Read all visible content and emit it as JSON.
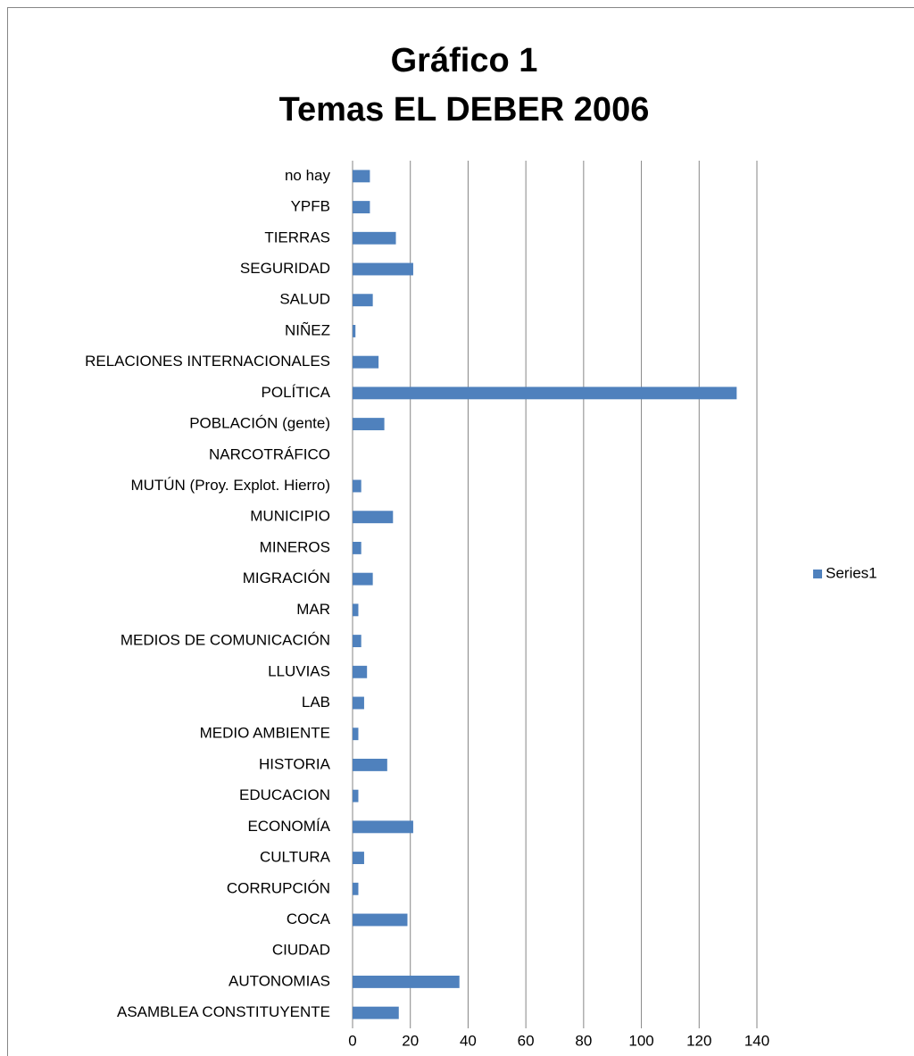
{
  "chart_data": {
    "type": "barh",
    "title": [
      "Gráfico 1",
      "Temas EL DEBER 2006"
    ],
    "categories": [
      "ASAMBLEA CONSTITUYENTE",
      "AUTONOMIAS",
      "CIUDAD",
      "COCA",
      "CORRUPCIÓN",
      "CULTURA",
      "ECONOMÍA",
      "EDUCACION",
      "HISTORIA",
      "MEDIO AMBIENTE",
      "LAB",
      "LLUVIAS",
      "MEDIOS DE COMUNICACIÓN",
      "MAR",
      "MIGRACIÓN",
      "MINEROS",
      "MUNICIPIO",
      "MUTÚN (Proy. Explot. Hierro)",
      "NARCOTRÁFICO",
      "POBLACIÓN (gente)",
      "POLÍTICA",
      "RELACIONES INTERNACIONALES",
      "NIÑEZ",
      "SALUD",
      "SEGURIDAD",
      "TIERRAS",
      "YPFB",
      "no hay"
    ],
    "series": [
      {
        "name": "Series1",
        "color": "#4f81bd",
        "values": [
          16,
          37,
          0,
          19,
          2,
          4,
          21,
          2,
          12,
          2,
          4,
          5,
          3,
          2,
          7,
          3,
          14,
          3,
          0,
          11,
          133,
          9,
          1,
          7,
          21,
          15,
          6,
          6
        ]
      }
    ],
    "xlim": [
      0,
      140
    ],
    "xticks": [
      0,
      20,
      40,
      60,
      80,
      100,
      120,
      140
    ],
    "grid": true,
    "legend": "right"
  }
}
